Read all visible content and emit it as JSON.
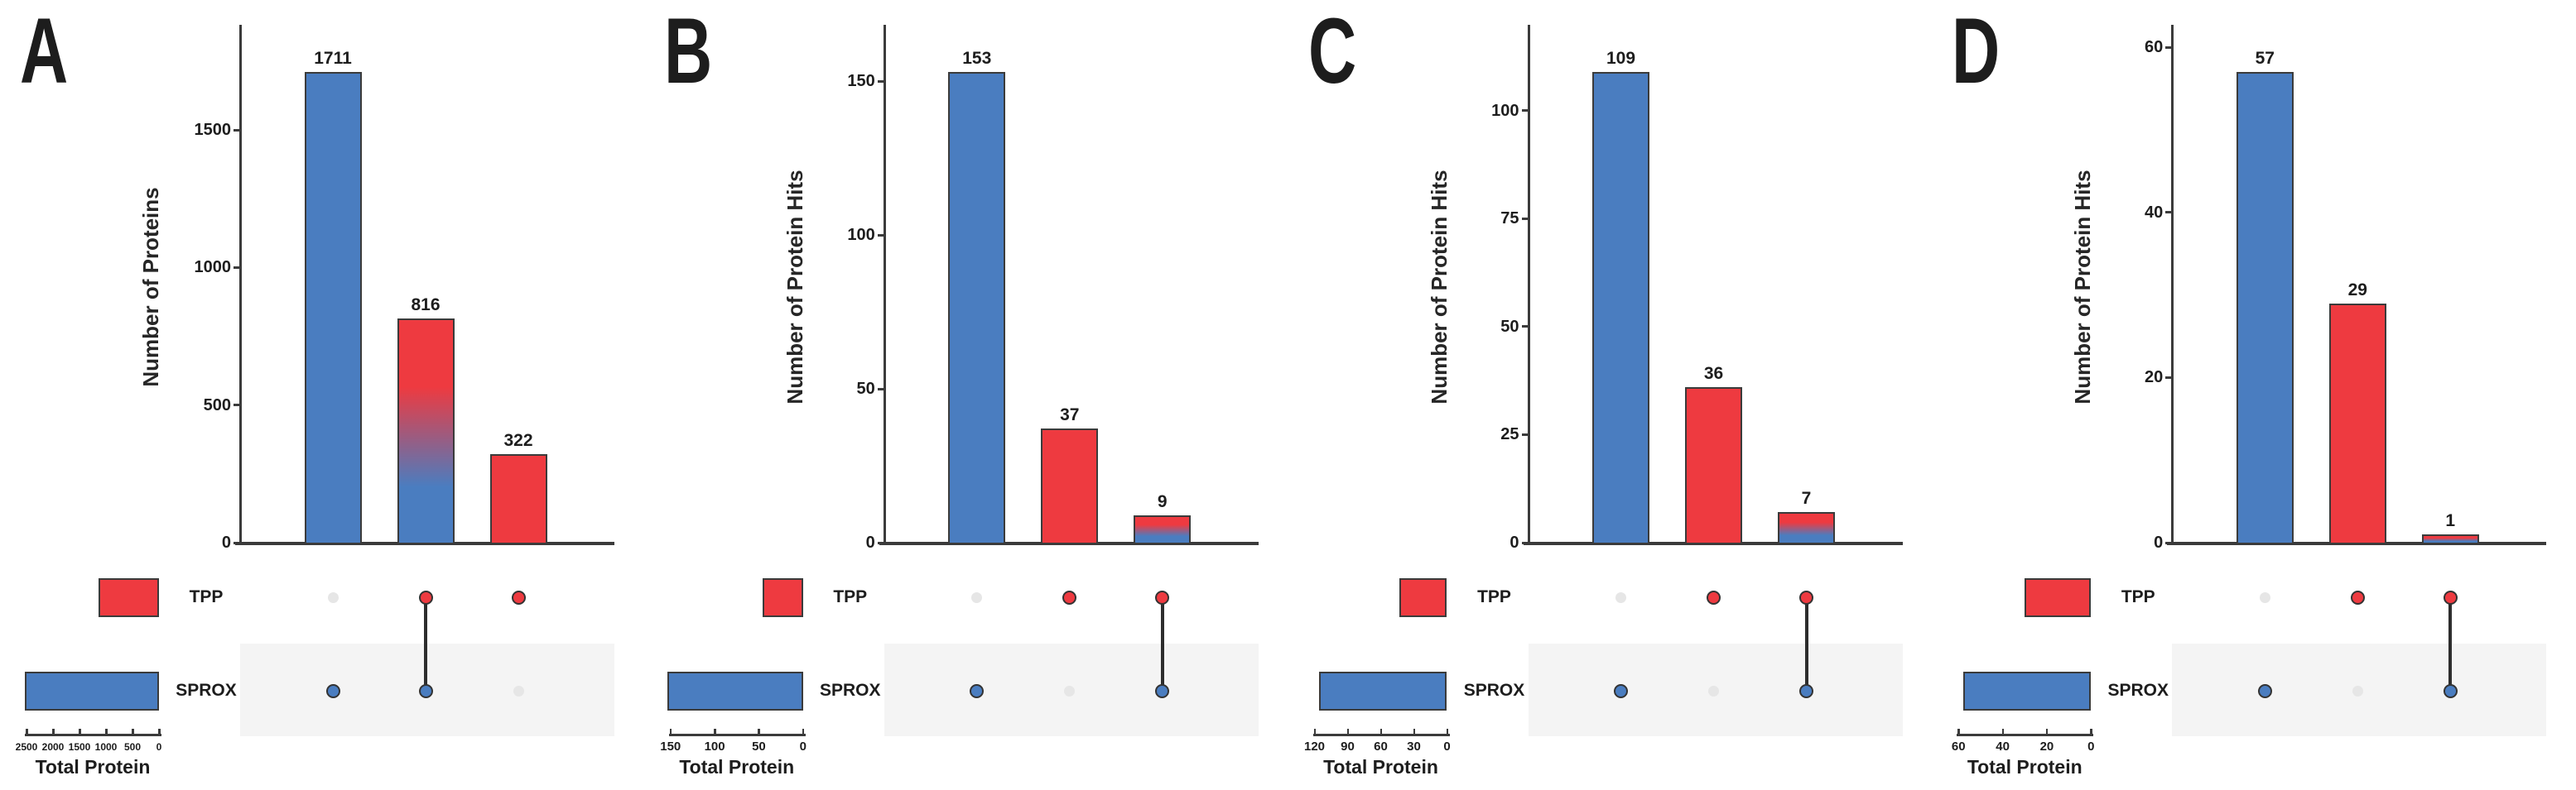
{
  "colors": {
    "sprox_blue": "#4a7dc0",
    "tpp_red": "#ee3a40",
    "axis": "#3b3b3b",
    "text": "#1d1d1d",
    "inactive_dot": "#e6e6e6",
    "row_shading": "#f4f4f4",
    "background": "#ffffff"
  },
  "chart_data": [
    {
      "type": "bar",
      "panel": "A",
      "title": "",
      "xlabel": "",
      "ylabel": "Number of Proteins",
      "y_ticks": [
        0,
        500,
        1000,
        1500
      ],
      "categories": [
        "SPROX only",
        "SPROX and TPP",
        "TPP only"
      ],
      "values": [
        1711,
        816,
        322
      ],
      "bar_fills": [
        "blue",
        "gradient",
        "red"
      ],
      "sets": [
        "TPP",
        "SPROX"
      ],
      "membership": [
        [
          "SPROX"
        ],
        [
          "SPROX",
          "TPP"
        ],
        [
          "TPP"
        ]
      ],
      "total_protein_axis": {
        "label": "Total Protein",
        "ticks": [
          2500,
          2000,
          1500,
          1000,
          500,
          0
        ]
      },
      "legend_position": "bottom-left",
      "grid": false
    },
    {
      "type": "bar",
      "panel": "B",
      "title": "",
      "xlabel": "",
      "ylabel": "Number of Protein Hits",
      "y_ticks": [
        0,
        50,
        100,
        150
      ],
      "categories": [
        "SPROX only",
        "TPP only",
        "SPROX and TPP"
      ],
      "values": [
        153,
        37,
        9
      ],
      "bar_fills": [
        "blue",
        "red",
        "gradient"
      ],
      "sets": [
        "TPP",
        "SPROX"
      ],
      "membership": [
        [
          "SPROX"
        ],
        [
          "TPP"
        ],
        [
          "SPROX",
          "TPP"
        ]
      ],
      "total_protein_axis": {
        "label": "Total Protein",
        "ticks": [
          150,
          100,
          50,
          0
        ]
      },
      "legend_position": "bottom-left",
      "grid": false
    },
    {
      "type": "bar",
      "panel": "C",
      "title": "",
      "xlabel": "",
      "ylabel": "Number of Protein Hits",
      "y_ticks": [
        0,
        25,
        50,
        75,
        100
      ],
      "categories": [
        "SPROX only",
        "TPP only",
        "SPROX and TPP"
      ],
      "values": [
        109,
        36,
        7
      ],
      "bar_fills": [
        "blue",
        "red",
        "gradient"
      ],
      "sets": [
        "TPP",
        "SPROX"
      ],
      "membership": [
        [
          "SPROX"
        ],
        [
          "TPP"
        ],
        [
          "SPROX",
          "TPP"
        ]
      ],
      "total_protein_axis": {
        "label": "Total Protein",
        "ticks": [
          120,
          90,
          60,
          30,
          0
        ]
      },
      "legend_position": "bottom-left",
      "grid": false
    },
    {
      "type": "bar",
      "panel": "D",
      "title": "",
      "xlabel": "",
      "ylabel": "Number of Protein Hits",
      "y_ticks": [
        0,
        20,
        40,
        60
      ],
      "categories": [
        "SPROX only",
        "TPP only",
        "SPROX and TPP"
      ],
      "values": [
        57,
        29,
        1
      ],
      "bar_fills": [
        "blue",
        "red",
        "gradient"
      ],
      "sets": [
        "TPP",
        "SPROX"
      ],
      "membership": [
        [
          "SPROX"
        ],
        [
          "TPP"
        ],
        [
          "SPROX",
          "TPP"
        ]
      ],
      "total_protein_axis": {
        "label": "Total Protein",
        "ticks": [
          60,
          40,
          20,
          0
        ]
      },
      "legend_position": "bottom-left",
      "grid": false
    }
  ]
}
